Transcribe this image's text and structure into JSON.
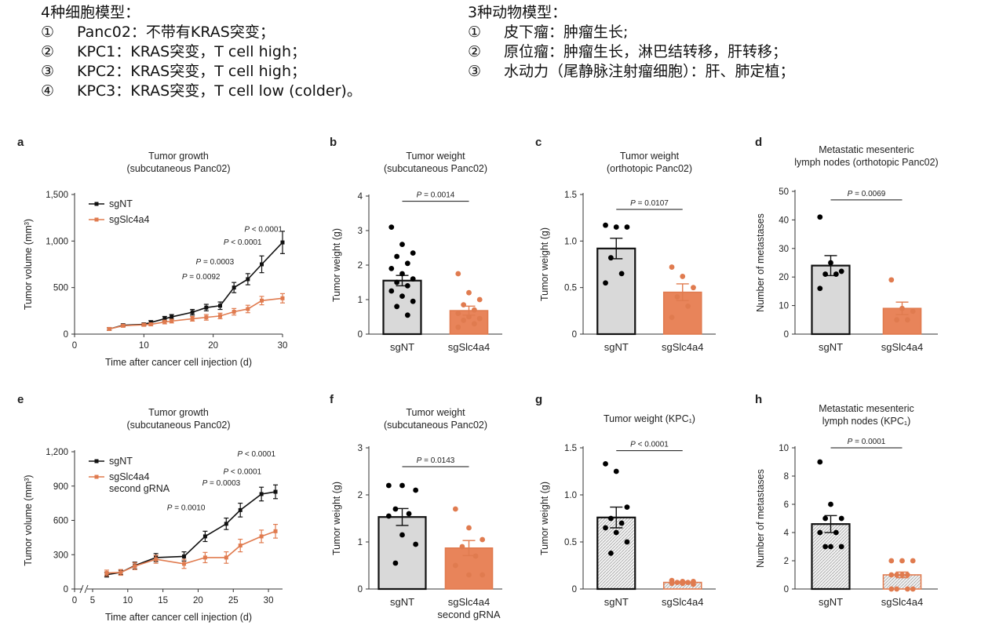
{
  "notes": {
    "cell_models": {
      "heading": "4种细胞模型：",
      "items": [
        {
          "num": "①",
          "text": "Panc02：不带有KRAS突变；"
        },
        {
          "num": "②",
          "text": "KPC1：KRAS突变，T cell high；"
        },
        {
          "num": "③",
          "text": "KPC2：KRAS突变，T cell high；"
        },
        {
          "num": "④",
          "text": "KPC3：KRAS突变，T cell low (colder)。"
        }
      ]
    },
    "animal_models": {
      "heading": "3种动物模型：",
      "items": [
        {
          "num": "①",
          "text": "皮下瘤：肿瘤生长;"
        },
        {
          "num": "②",
          "text": "原位瘤：肿瘤生长，淋巴结转移，肝转移；"
        },
        {
          "num": "③",
          "text": "水动力（尾静脉注射瘤细胞）：肝、肺定植；"
        }
      ]
    }
  },
  "colors": {
    "sgNT": "#111111",
    "sgSlc4a4": "#e07b4f",
    "bar_gray": "#d9d9d9",
    "bar_orange": "#e8845a"
  },
  "chart_data": [
    {
      "panel": "a",
      "type": "line",
      "title": "Tumor growth",
      "subtitle": "(subcutaneous Panc02)",
      "xlabel": "Time after cancer cell injection (d)",
      "ylabel": "Tumor volume (mm³)",
      "xlim": [
        0,
        30
      ],
      "ylim": [
        0,
        1500
      ],
      "xticks": [
        0,
        10,
        20,
        30
      ],
      "xtick_labels": [
        "0",
        "10",
        "20",
        "30"
      ],
      "yticks": [
        0,
        500,
        1000,
        1500
      ],
      "ytick_labels": [
        "0",
        "500",
        "1,000",
        "1,500"
      ],
      "legend": "top-left",
      "x": [
        5,
        7,
        10,
        11,
        13,
        14,
        17,
        19,
        21,
        23,
        25,
        27,
        30
      ],
      "series": [
        {
          "name": "sgNT",
          "values": [
            55,
            95,
            105,
            125,
            165,
            185,
            235,
            285,
            305,
            500,
            590,
            750,
            985
          ],
          "errors": [
            15,
            15,
            15,
            20,
            25,
            25,
            30,
            35,
            40,
            55,
            60,
            90,
            120
          ]
        },
        {
          "name": "sgSlc4a4",
          "values": [
            55,
            90,
            100,
            105,
            130,
            140,
            165,
            180,
            195,
            240,
            270,
            360,
            385
          ],
          "errors": [
            15,
            15,
            15,
            15,
            20,
            20,
            25,
            30,
            30,
            35,
            40,
            45,
            50
          ]
        }
      ],
      "annotations": [
        {
          "text": "P = 0.0092",
          "x": 21,
          "y": 590
        },
        {
          "text": "P = 0.0003",
          "x": 23,
          "y": 750
        },
        {
          "text": "P < 0.0001",
          "x": 27,
          "y": 960
        },
        {
          "text": "P < 0.0001",
          "x": 30,
          "y": 1100
        }
      ]
    },
    {
      "panel": "b",
      "type": "bar",
      "title": "Tumor weight",
      "subtitle": "(subcutaneous Panc02)",
      "ylabel": "Tumor weight (g)",
      "ylim": [
        0,
        4
      ],
      "yticks": [
        0,
        1,
        2,
        3,
        4
      ],
      "ytick_labels": [
        "0",
        "1",
        "2",
        "3",
        "4"
      ],
      "categories": [
        "sgNT",
        "sgSlc4a4"
      ],
      "values": [
        1.55,
        0.68
      ],
      "errors": [
        0.15,
        0.13
      ],
      "points": [
        [
          3.1,
          2.6,
          2.35,
          2.25,
          2.05,
          1.9,
          1.75,
          1.6,
          1.5,
          1.4,
          1.25,
          1.1,
          0.95,
          0.8,
          0.55
        ],
        [
          1.75,
          1.2,
          1.0,
          0.85,
          0.7,
          0.6,
          0.5,
          0.45,
          0.4,
          0.3,
          0.2
        ]
      ],
      "pvalue": "P = 0.0014",
      "pvalue_y": 3.85
    },
    {
      "panel": "c",
      "type": "bar",
      "title": "Tumor weight",
      "subtitle": "(orthotopic Panc02)",
      "ylabel": "Tumor weight (g)",
      "ylim": [
        0,
        1.5
      ],
      "yticks": [
        0,
        0.5,
        1.0,
        1.5
      ],
      "ytick_labels": [
        "0",
        "0.5",
        "1.0",
        "1.5"
      ],
      "categories": [
        "sgNT",
        "sgSlc4a4"
      ],
      "values": [
        0.92,
        0.45
      ],
      "errors": [
        0.11,
        0.09
      ],
      "points": [
        [
          1.17,
          1.15,
          1.15,
          0.82,
          0.65,
          0.55
        ],
        [
          0.72,
          0.62,
          0.5,
          0.4,
          0.3,
          0.18
        ]
      ],
      "pvalue": "P = 0.0107",
      "pvalue_y": 1.34
    },
    {
      "panel": "d",
      "type": "bar",
      "title": "Metastatic mesenteric",
      "subtitle": "lymph nodes (orthotopic Panc02)",
      "ylabel": "Number of metastases",
      "ylim": [
        0,
        50
      ],
      "yticks": [
        0,
        10,
        20,
        30,
        40,
        50
      ],
      "ytick_labels": [
        "0",
        "10",
        "20",
        "30",
        "40",
        "50"
      ],
      "categories": [
        "sgNT",
        "sgSlc4a4"
      ],
      "values": [
        24,
        9
      ],
      "errors": [
        3.5,
        2.2
      ],
      "points": [
        [
          41,
          25,
          22,
          21,
          21,
          16
        ],
        [
          19,
          9,
          8,
          5,
          5
        ]
      ],
      "pvalue": "P = 0.0069",
      "pvalue_y": 47
    },
    {
      "panel": "e",
      "type": "line",
      "title": "Tumor growth",
      "subtitle": "(subcutaneous Panc02)",
      "xlabel": "Time after cancer cell injection (d)",
      "ylabel": "Tumor volume (mm³)",
      "xlim": [
        0,
        32
      ],
      "ylim": [
        0,
        1200
      ],
      "broken_axis": [
        0,
        7
      ],
      "xticks": [
        0,
        5,
        10,
        15,
        20,
        25,
        30
      ],
      "xtick_labels": [
        "0",
        "5",
        "10",
        "15",
        "20",
        "25",
        "30"
      ],
      "yticks": [
        0,
        300,
        600,
        900,
        1200
      ],
      "ytick_labels": [
        "0",
        "300",
        "600",
        "900",
        "1,200"
      ],
      "legend": "top-left",
      "x": [
        7,
        9,
        11,
        14,
        18,
        21,
        24,
        26,
        29,
        31
      ],
      "series": [
        {
          "name": "sgNT",
          "values": [
            125,
            145,
            205,
            275,
            285,
            460,
            570,
            690,
            830,
            850
          ],
          "errors": [
            20,
            20,
            30,
            35,
            40,
            45,
            50,
            60,
            60,
            60
          ]
        },
        {
          "name": "sgSlc4a4 second gRNA",
          "values": [
            140,
            145,
            200,
            260,
            220,
            275,
            275,
            380,
            460,
            505
          ],
          "errors": [
            25,
            25,
            30,
            35,
            40,
            45,
            50,
            55,
            55,
            60
          ]
        }
      ],
      "annotations": [
        {
          "text": "P = 0.0010",
          "x": 21,
          "y": 690
        },
        {
          "text": "P = 0.0003",
          "x": 26,
          "y": 905
        },
        {
          "text": "P < 0.0001",
          "x": 29,
          "y": 1005
        },
        {
          "text": "P < 0.0001",
          "x": 31,
          "y": 1160
        }
      ]
    },
    {
      "panel": "f",
      "type": "bar",
      "title": "Tumor weight",
      "subtitle": "(subcutaneous Panc02)",
      "ylabel": "Tumor weight (g)",
      "ylim": [
        0,
        3
      ],
      "yticks": [
        0,
        1,
        2,
        3
      ],
      "ytick_labels": [
        "0",
        "1",
        "2",
        "3"
      ],
      "categories": [
        "sgNT",
        "sgSlc4a4 second gRNA"
      ],
      "values": [
        1.53,
        0.87
      ],
      "errors": [
        0.18,
        0.16
      ],
      "points": [
        [
          2.2,
          2.2,
          2.1,
          1.7,
          1.6,
          1.55,
          1.15,
          0.95,
          0.55
        ],
        [
          1.7,
          1.3,
          1.05,
          0.9,
          0.7,
          0.5,
          0.3,
          0.3
        ]
      ],
      "pvalue": "P = 0.0143",
      "pvalue_y": 2.6
    },
    {
      "panel": "g",
      "type": "bar",
      "hatched": true,
      "title": "Tumor weight (KPC₁)",
      "subtitle": "",
      "ylabel": "Tumor weight (g)",
      "ylim": [
        0,
        1.5
      ],
      "yticks": [
        0,
        0.5,
        1.0,
        1.5
      ],
      "ytick_labels": [
        "0",
        "0.5",
        "1.0",
        "1.5"
      ],
      "categories": [
        "sgNT",
        "sgSlc4a4"
      ],
      "values": [
        0.76,
        0.07
      ],
      "errors": [
        0.11,
        0.01
      ],
      "points": [
        [
          1.33,
          1.25,
          0.87,
          0.75,
          0.7,
          0.65,
          0.6,
          0.5,
          0.38
        ],
        [
          0.09,
          0.08,
          0.08,
          0.07,
          0.07,
          0.06,
          0.06,
          0.05
        ]
      ],
      "pvalue": "P < 0.0001",
      "pvalue_y": 1.47
    },
    {
      "panel": "h",
      "type": "bar",
      "hatched": true,
      "title": "Metastatic mesenteric",
      "subtitle": "lymph nodes (KPC₁)",
      "ylabel": "Number of metastases",
      "ylim": [
        0,
        10
      ],
      "yticks": [
        0,
        2,
        4,
        6,
        8,
        10
      ],
      "ytick_labels": [
        "0",
        "2",
        "4",
        "6",
        "8",
        "10"
      ],
      "categories": [
        "sgNT",
        "sgSlc4a4"
      ],
      "values": [
        4.6,
        1.0
      ],
      "errors": [
        0.6,
        0.2
      ],
      "points": [
        [
          9,
          6,
          5,
          5,
          4,
          4,
          3,
          3,
          3
        ],
        [
          2,
          2,
          2,
          1,
          1,
          1,
          1,
          0,
          0,
          0,
          0
        ]
      ],
      "pvalue": "P = 0.0001",
      "pvalue_y": 10
    }
  ]
}
